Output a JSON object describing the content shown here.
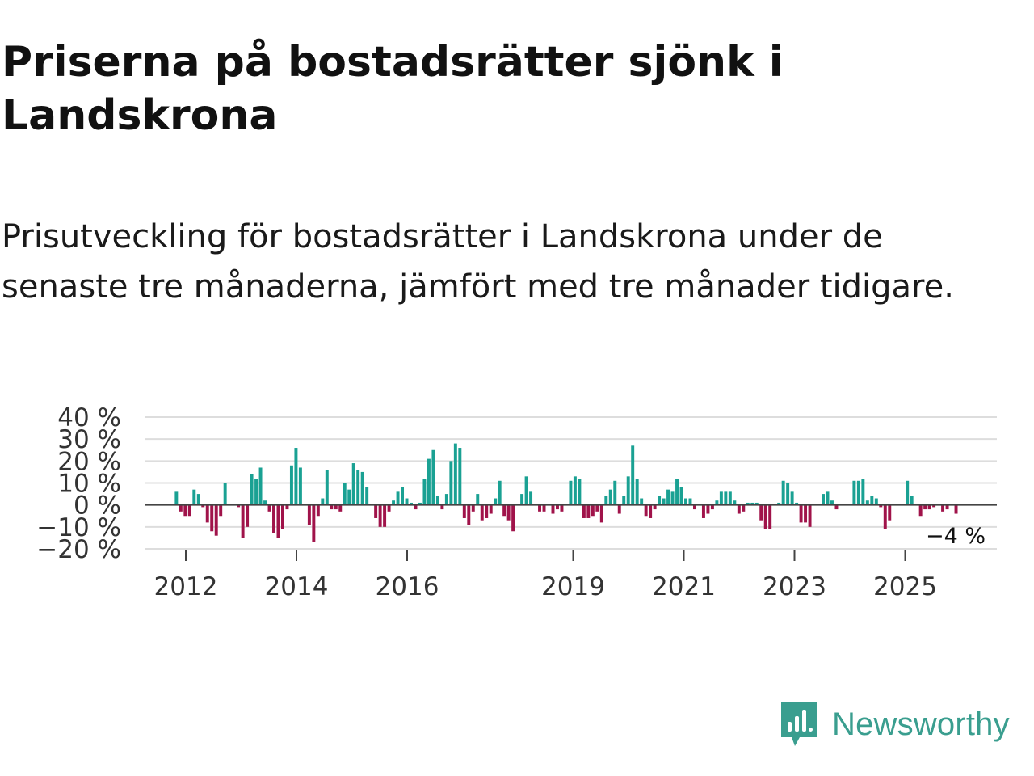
{
  "header": {
    "title": "Priserna på bostadsrätter sjönk i Landskrona",
    "subtitle": "Prisutveckling för bostadsrätter i Landskrona under de senaste tre månaderna, jämfört med tre månader tidigare."
  },
  "brand": {
    "name": "Newsworthy",
    "icon": "newsworthy-logo-icon",
    "color": "#3a9e8f"
  },
  "colors": {
    "positive": "#1aa193",
    "negative": "#a0134a",
    "grid": "#dddddd",
    "zero": "#444444"
  },
  "chart_data": {
    "type": "bar",
    "title": "Priserna på bostadsrätter sjönk i Landskrona",
    "xlabel": "",
    "ylabel": "",
    "ylim": [
      -20,
      40
    ],
    "x_start_year": 2011.83,
    "x_end_year": 2025.92,
    "y_ticks": [
      {
        "value": 40,
        "label": "40 %"
      },
      {
        "value": 30,
        "label": "30 %"
      },
      {
        "value": 20,
        "label": "20 %"
      },
      {
        "value": 10,
        "label": "10 %"
      },
      {
        "value": 0,
        "label": "0 %"
      },
      {
        "value": -10,
        "label": "−10 %"
      },
      {
        "value": -20,
        "label": "−20 %"
      }
    ],
    "x_ticks": [
      {
        "year": 2012,
        "label": "2012"
      },
      {
        "year": 2014,
        "label": "2014"
      },
      {
        "year": 2016,
        "label": "2016"
      },
      {
        "year": 2019,
        "label": "2019"
      },
      {
        "year": 2021,
        "label": "2021"
      },
      {
        "year": 2023,
        "label": "2023"
      },
      {
        "year": 2025,
        "label": "2025"
      }
    ],
    "values": [
      6,
      -3,
      -5,
      -5,
      7,
      5,
      -1,
      -8,
      -12,
      -14,
      -5,
      10,
      0,
      0,
      -1,
      -15,
      -10,
      14,
      12,
      17,
      2,
      -3,
      -13,
      -15,
      -11,
      -2,
      18,
      26,
      17,
      0,
      -9,
      -17,
      -5,
      3,
      16,
      -2,
      -2,
      -3,
      10,
      7,
      19,
      16,
      15,
      8,
      0,
      -6,
      -10,
      -10,
      -3,
      2,
      6,
      8,
      3,
      1,
      -2,
      1,
      12,
      21,
      25,
      4,
      -2,
      5,
      20,
      28,
      26,
      -6,
      -9,
      -3,
      5,
      -7,
      -6,
      -4,
      3,
      11,
      -5,
      -7,
      -12,
      0,
      5,
      13,
      6,
      0,
      -3,
      -3,
      0,
      -4,
      -2,
      -3,
      0,
      11,
      13,
      12,
      -6,
      -6,
      -5,
      -3,
      -8,
      4,
      7,
      11,
      -4,
      4,
      13,
      27,
      12,
      3,
      -5,
      -6,
      -2,
      4,
      3,
      7,
      6,
      12,
      8,
      3,
      3,
      -2,
      0,
      -6,
      -4,
      -2,
      2,
      6,
      6,
      6,
      2,
      -4,
      -3,
      1,
      1,
      1,
      -7,
      -11,
      -11,
      0,
      1,
      11,
      10,
      6,
      1,
      -8,
      -8,
      -10,
      0,
      0,
      5,
      6,
      2,
      -2,
      0,
      0,
      0,
      11,
      11,
      12,
      2,
      4,
      3,
      -1,
      -11,
      -7,
      0,
      0,
      0,
      11,
      4,
      0,
      -5,
      -2,
      -2,
      -1,
      0,
      -3,
      -2,
      0,
      -4
    ],
    "last_value_label": "−4 %"
  }
}
